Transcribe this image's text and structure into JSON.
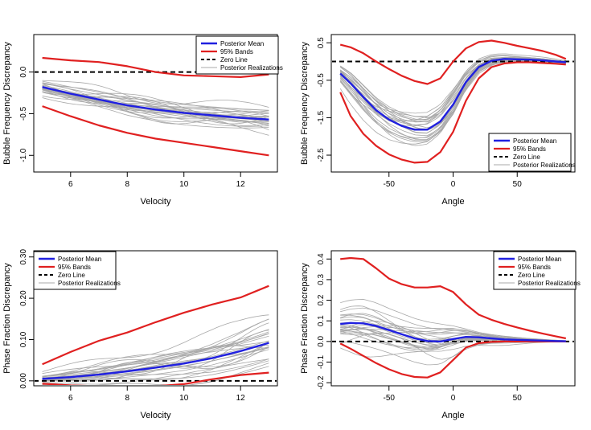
{
  "colors": {
    "mean": "#2020e0",
    "bands": "#e02020",
    "zero": "#000000",
    "realization": "#a8a8a8"
  },
  "chart_data": [
    {
      "type": "line",
      "xlabel": "Velocity",
      "ylabel": "Bubble Frequency Discrepancy",
      "xlim": [
        4.7,
        13.3
      ],
      "ylim": [
        -1.2,
        0.45
      ],
      "xticks": [
        6,
        8,
        10,
        12
      ],
      "yticks": [
        -1.0,
        -0.5,
        0.0
      ],
      "ytick_labels": [
        "-1.0",
        "-0.5",
        "0.0"
      ],
      "legend": {
        "position": "top-right",
        "entries": [
          "Posterior Mean",
          "95% Bands",
          "Zero Line",
          "Posterior Realizations"
        ]
      },
      "x": [
        5,
        6,
        7,
        8,
        9,
        10,
        11,
        12,
        13
      ],
      "mean": [
        -0.18,
        -0.26,
        -0.33,
        -0.4,
        -0.45,
        -0.49,
        -0.52,
        -0.55,
        -0.57
      ],
      "upper": [
        0.17,
        0.14,
        0.12,
        0.07,
        0.0,
        -0.04,
        -0.05,
        -0.06,
        -0.03
      ],
      "lower": [
        -0.41,
        -0.53,
        -0.64,
        -0.73,
        -0.8,
        -0.85,
        -0.9,
        -0.95,
        -1.0
      ],
      "zero": 0
    },
    {
      "type": "line",
      "xlabel": "Angle",
      "ylabel": "Bubble Frequency Discrepancy",
      "xlim": [
        -95,
        95
      ],
      "ylim": [
        -2.95,
        0.72
      ],
      "xticks": [
        -50,
        0,
        50
      ],
      "yticks": [
        -2.5,
        -1.5,
        -0.5,
        0.5
      ],
      "ytick_labels": [
        "-2.5",
        "-1.5",
        "-0.5",
        "0.5"
      ],
      "legend": {
        "position": "bottom-right",
        "entries": [
          "Posterior Mean",
          "95% Bands",
          "Zero Line",
          "Posterior Realizations"
        ]
      },
      "x": [
        -88,
        -80,
        -70,
        -60,
        -50,
        -40,
        -30,
        -20,
        -10,
        0,
        10,
        20,
        30,
        40,
        50,
        60,
        70,
        80,
        88
      ],
      "mean": [
        -0.32,
        -0.58,
        -0.95,
        -1.3,
        -1.55,
        -1.72,
        -1.82,
        -1.82,
        -1.6,
        -1.15,
        -0.55,
        -0.15,
        0.02,
        0.07,
        0.06,
        0.05,
        0.03,
        0.0,
        -0.02
      ],
      "upper": [
        0.45,
        0.38,
        0.22,
        0.0,
        -0.2,
        -0.38,
        -0.52,
        -0.6,
        -0.45,
        0.0,
        0.35,
        0.52,
        0.56,
        0.5,
        0.42,
        0.35,
        0.28,
        0.18,
        0.07
      ],
      "lower": [
        -0.82,
        -1.45,
        -1.93,
        -2.25,
        -2.48,
        -2.62,
        -2.7,
        -2.68,
        -2.42,
        -1.88,
        -1.05,
        -0.45,
        -0.15,
        -0.05,
        -0.02,
        -0.02,
        -0.04,
        -0.06,
        -0.08
      ],
      "zero": 0
    },
    {
      "type": "line",
      "xlabel": "Velocity",
      "ylabel": "Phase Fraction Discrepancy",
      "xlim": [
        4.7,
        13.3
      ],
      "ylim": [
        -0.012,
        0.315
      ],
      "xticks": [
        6,
        8,
        10,
        12
      ],
      "yticks": [
        0.0,
        0.1,
        0.2,
        0.3
      ],
      "ytick_labels": [
        "0.00",
        "0.10",
        "0.20",
        "0.30"
      ],
      "legend": {
        "position": "top-left",
        "entries": [
          "Posterior Mean",
          "95% Bands",
          "Zero Line",
          "Posterior Realizations"
        ]
      },
      "x": [
        5,
        6,
        7,
        8,
        9,
        10,
        11,
        12,
        13
      ],
      "mean": [
        0.005,
        0.009,
        0.015,
        0.023,
        0.032,
        0.042,
        0.055,
        0.072,
        0.092
      ],
      "upper": [
        0.04,
        0.07,
        0.097,
        0.117,
        0.142,
        0.165,
        0.185,
        0.202,
        0.23
      ],
      "lower": [
        -0.007,
        -0.011,
        -0.013,
        -0.014,
        -0.013,
        -0.008,
        0.004,
        0.014,
        0.02
      ],
      "zero": 0
    },
    {
      "type": "line",
      "xlabel": "Angle",
      "ylabel": "Phase Fraction Discrepancy",
      "xlim": [
        -95,
        95
      ],
      "ylim": [
        -0.215,
        0.44
      ],
      "xticks": [
        -50,
        0,
        50
      ],
      "yticks": [
        -0.2,
        -0.1,
        0.0,
        0.1,
        0.2,
        0.3,
        0.4
      ],
      "ytick_labels": [
        "-0.2",
        "-0.1",
        "0.0",
        "0.1",
        "0.2",
        "0.3",
        "0.4"
      ],
      "legend": {
        "position": "top-right",
        "entries": [
          "Posterior Mean",
          "95% Bands",
          "Zero Line",
          "Posterior Realizations"
        ]
      },
      "x": [
        -88,
        -80,
        -70,
        -60,
        -50,
        -40,
        -30,
        -20,
        -10,
        0,
        10,
        20,
        30,
        40,
        50,
        60,
        70,
        80,
        88
      ],
      "mean": [
        0.085,
        0.09,
        0.088,
        0.075,
        0.055,
        0.035,
        0.015,
        0.002,
        0.0,
        0.012,
        0.022,
        0.02,
        0.015,
        0.01,
        0.008,
        0.006,
        0.004,
        0.002,
        0.001
      ],
      "upper": [
        0.4,
        0.405,
        0.4,
        0.355,
        0.305,
        0.278,
        0.262,
        0.262,
        0.268,
        0.24,
        0.18,
        0.13,
        0.105,
        0.085,
        0.068,
        0.052,
        0.038,
        0.025,
        0.015
      ],
      "lower": [
        -0.01,
        -0.035,
        -0.07,
        -0.105,
        -0.135,
        -0.158,
        -0.172,
        -0.175,
        -0.15,
        -0.09,
        -0.03,
        -0.008,
        -0.002,
        0.0,
        0.0,
        0.0,
        0.0,
        0.0,
        0.0
      ],
      "zero": 0
    }
  ]
}
